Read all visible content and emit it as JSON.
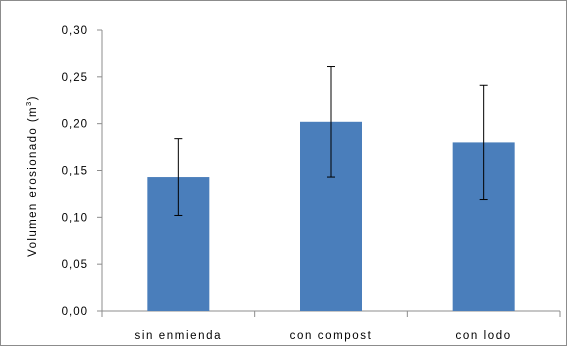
{
  "chart_data": {
    "type": "bar",
    "categories": [
      "sin enmienda",
      "con compost",
      "con lodo"
    ],
    "series": [
      {
        "values": [
          0.143,
          0.202,
          0.18
        ],
        "error": [
          0.041,
          0.059,
          0.061
        ],
        "color": "#4a7ebb"
      }
    ],
    "ylabel": "Volumen erosionado (m",
    "ylabel_sup": "3",
    "ylabel_close": ")",
    "ylim": [
      0,
      0.3
    ],
    "yticks": [
      0,
      0.05,
      0.1,
      0.15,
      0.2,
      0.25,
      0.3
    ],
    "ytick_labels": [
      "0,00",
      "0,05",
      "0,10",
      "0,15",
      "0,20",
      "0,25",
      "0,30"
    ],
    "grid": false,
    "legend": "none"
  }
}
